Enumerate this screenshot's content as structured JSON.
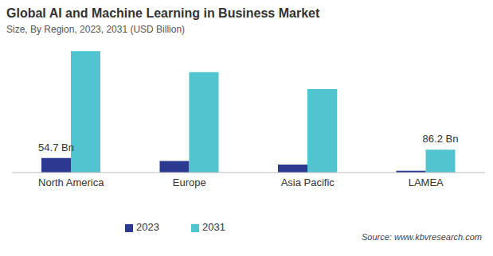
{
  "chart_data": {
    "type": "bar",
    "title": "Global AI and Machine Learning in Business Market",
    "subtitle": "Size, By Region, 2023, 2031 (USD Billion)",
    "categories": [
      "North America",
      "Europe",
      "Asia Pacific",
      "LAMEA"
    ],
    "series": [
      {
        "name": "2023",
        "color": "#2b3990",
        "values": [
          54.7,
          44,
          30,
          7
        ],
        "value_labels": [
          "54.7 Bn",
          null,
          null,
          null
        ]
      },
      {
        "name": "2031",
        "color": "#50c4cf",
        "values": [
          460,
          380,
          316,
          86.2
        ],
        "value_labels": [
          null,
          null,
          null,
          "86.2 Bn"
        ]
      }
    ],
    "data_labels": true,
    "tick_labels": "x",
    "grid": false,
    "legend": "bottom",
    "annotations": [
      "Source: www.kbvresearch.com"
    ]
  }
}
